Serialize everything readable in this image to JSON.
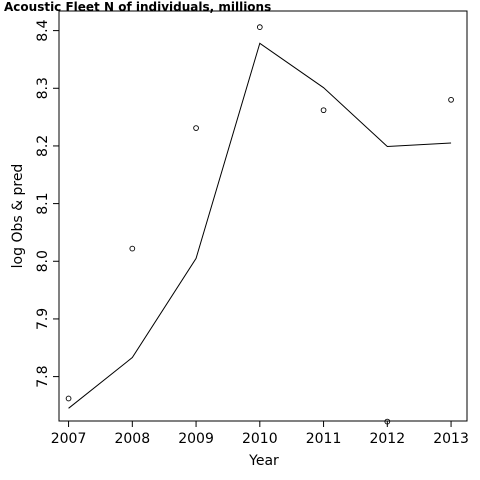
{
  "chart_data": {
    "type": "line",
    "title": "Acoustic Fleet   N of individuals, millions",
    "xlabel": "Year",
    "ylabel": "log Obs & pred",
    "x": [
      2007,
      2008,
      2009,
      2010,
      2011,
      2012,
      2013
    ],
    "x_ticks": [
      "2007",
      "2008",
      "2009",
      "2010",
      "2011",
      "2012",
      "2013"
    ],
    "y_ticks": [
      "7.8",
      "7.9",
      "8.0",
      "8.1",
      "8.2",
      "8.3",
      "8.4"
    ],
    "xlim": [
      2006.85,
      2013.25
    ],
    "ylim": [
      7.723,
      8.434
    ],
    "series": [
      {
        "kind": "points",
        "values": [
          7.762,
          8.022,
          8.231,
          8.406,
          8.262,
          7.722,
          8.28
        ]
      },
      {
        "kind": "line",
        "values": [
          7.745,
          7.833,
          8.005,
          8.378,
          8.301,
          8.199,
          8.205
        ]
      }
    ],
    "grid": false,
    "legend": "none"
  }
}
